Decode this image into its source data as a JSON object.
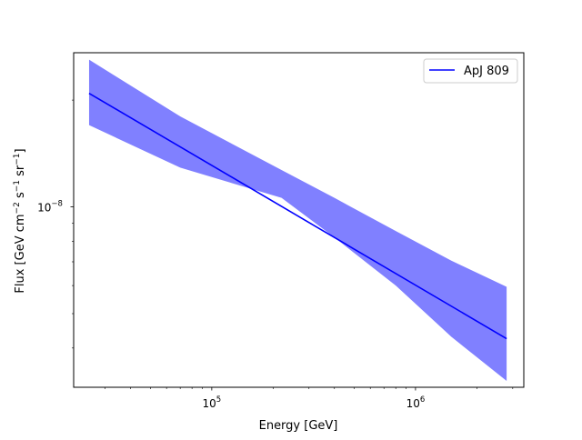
{
  "chart_data": {
    "type": "area",
    "title": "",
    "xlabel": "Energy [GeV]",
    "ylabel_main": "Flux [GeV cm",
    "ylabel_parts": [
      {
        "text": "Flux [GeV cm",
        "sup": false
      },
      {
        "text": "−2",
        "sup": true
      },
      {
        "text": " s",
        "sup": false
      },
      {
        "text": "−1",
        "sup": true
      },
      {
        "text": " sr",
        "sup": false
      },
      {
        "text": "−1",
        "sup": true
      },
      {
        "text": "]",
        "sup": false
      }
    ],
    "x_scale": "log",
    "y_scale": "log",
    "xlim": [
      21000,
      3400000
    ],
    "ylim": [
      3.1e-09,
      2.72e-08
    ],
    "x_tick_labels": [
      {
        "value": 100000,
        "base": "10",
        "exp": "5"
      },
      {
        "value": 1000000,
        "base": "10",
        "exp": "6"
      }
    ],
    "y_tick_labels": [
      {
        "value": 1e-08,
        "base": "10",
        "exp": "−8"
      }
    ],
    "grid": false,
    "legend_position": "top-right",
    "series": [
      {
        "name": "ApJ 809",
        "color": "#0000ff",
        "x": [
          25000,
          2800000
        ],
        "y": [
          2.09e-08,
          4.25e-09
        ]
      }
    ],
    "band": {
      "color": "#8080ff",
      "x": [
        25000,
        70000,
        220000,
        400000,
        800000,
        1500000,
        2800000
      ],
      "upper": [
        2.6e-08,
        1.8e-08,
        1.27e-08,
        1.06e-08,
        8.55e-09,
        7.05e-09,
        5.95e-09
      ],
      "lower": [
        1.7e-08,
        1.29e-08,
        1.06e-08,
        8.2e-09,
        6e-09,
        4.3e-09,
        3.23e-09
      ]
    }
  }
}
